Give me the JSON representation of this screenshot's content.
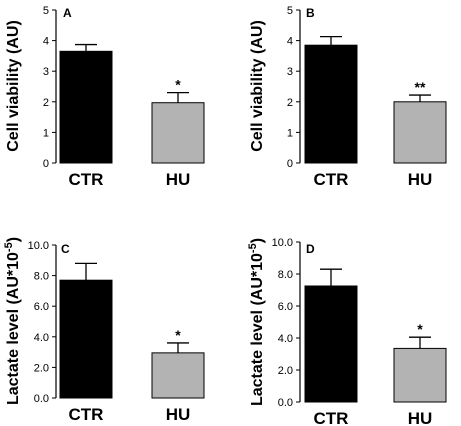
{
  "chart_data": [
    {
      "panel": "A",
      "type": "bar",
      "categories": [
        "CTR",
        "HU"
      ],
      "values": [
        3.65,
        1.97
      ],
      "errors": [
        0.22,
        0.33
      ],
      "significance": [
        "",
        "*"
      ],
      "colors": [
        "#000000",
        "#b3b3b3"
      ],
      "ylabel": "Cell viability (AU)",
      "ylim": [
        0,
        5
      ],
      "ticks": [
        "0",
        "1",
        "2",
        "3",
        "4",
        "5"
      ]
    },
    {
      "panel": "B",
      "type": "bar",
      "categories": [
        "CTR",
        "HU"
      ],
      "values": [
        3.85,
        2.0
      ],
      "errors": [
        0.28,
        0.22
      ],
      "significance": [
        "",
        "**"
      ],
      "colors": [
        "#000000",
        "#b3b3b3"
      ],
      "ylabel": "Cell viability (AU)",
      "ylim": [
        0,
        5
      ],
      "ticks": [
        "0",
        "1",
        "2",
        "3",
        "4",
        "5"
      ]
    },
    {
      "panel": "C",
      "type": "bar",
      "categories": [
        "CTR",
        "HU"
      ],
      "values": [
        7.7,
        2.95
      ],
      "errors": [
        1.1,
        0.65
      ],
      "significance": [
        "",
        "*"
      ],
      "colors": [
        "#000000",
        "#b3b3b3"
      ],
      "ylabel": "Lactate level (AU*10",
      "ylabel_sup": "-5",
      "ylabel_close": ")",
      "ylim": [
        0,
        10
      ],
      "ticks": [
        "0.0",
        "2.0",
        "4.0",
        "6.0",
        "8.0",
        "10.0"
      ]
    },
    {
      "panel": "D",
      "type": "bar",
      "categories": [
        "CTR",
        "HU"
      ],
      "values": [
        7.25,
        3.35
      ],
      "errors": [
        1.05,
        0.7
      ],
      "significance": [
        "",
        "*"
      ],
      "colors": [
        "#000000",
        "#b3b3b3"
      ],
      "ylabel": "Lactate level (AU*10",
      "ylabel_sup": "-5",
      "ylabel_close": ")",
      "ylim": [
        0,
        10
      ],
      "ticks": [
        "0.0",
        "2.0",
        "4.0",
        "6.0",
        "8.0",
        "10.0"
      ]
    }
  ]
}
